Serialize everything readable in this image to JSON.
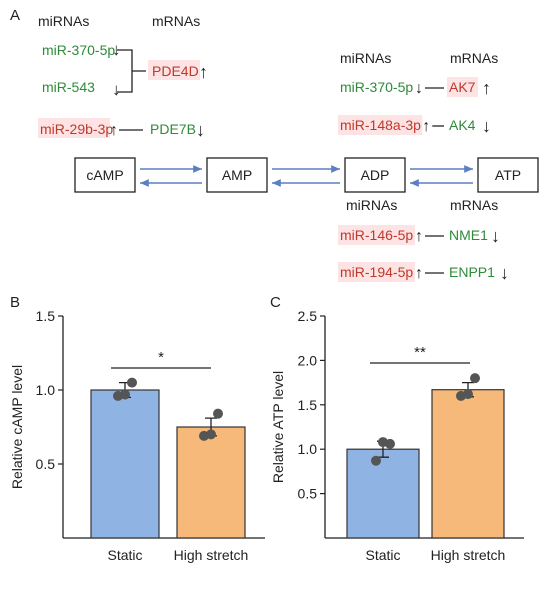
{
  "panel_a": {
    "label": "A",
    "top_left": {
      "header_mirnas": "miRNAs",
      "header_mrnas": "mRNAs",
      "mirnas": [
        {
          "name": "miR-370-5p",
          "arrow": "↓",
          "color": "#2e8b3a"
        },
        {
          "name": "miR-543",
          "arrow": "↓",
          "color": "#2e8b3a"
        },
        {
          "name": "miR-29b-3p",
          "arrow": "↑",
          "color": "#c0392b"
        }
      ],
      "mrnas": [
        {
          "name": "PDE4D",
          "arrow": "↑",
          "color": "#c0392b"
        },
        {
          "name": "PDE7B",
          "arrow": "↓",
          "color": "#2e8b3a"
        }
      ]
    },
    "top_right": {
      "header_mirnas": "miRNAs",
      "header_mrnas": "mRNAs",
      "pairs": [
        {
          "mirna": "miR-370-5p",
          "mirna_arrow": "↓",
          "mirna_color": "#2e8b3a",
          "mrna": "AK7",
          "mrna_arrow": "↑",
          "mrna_color": "#c0392b"
        },
        {
          "mirna": "miR-148a-3p",
          "mirna_arrow": "↑",
          "mirna_color": "#c0392b",
          "mrna": "AK4",
          "mrna_arrow": "↓",
          "mrna_color": "#2e8b3a"
        }
      ]
    },
    "pathway": [
      "cAMP",
      "AMP",
      "ADP",
      "ATP"
    ],
    "bottom_right": {
      "header_mirnas": "miRNAs",
      "header_mrnas": "mRNAs",
      "pairs": [
        {
          "mirna": "miR-146-5p",
          "mirna_arrow": "↑",
          "mirna_color": "#c0392b",
          "mrna": "NME1",
          "mrna_arrow": "↓",
          "mrna_color": "#2e8b3a"
        },
        {
          "mirna": "miR-194-5p",
          "mirna_arrow": "↑",
          "mirna_color": "#c0392b",
          "mrna": "ENPP1",
          "mrna_arrow": "↓",
          "mrna_color": "#2e8b3a"
        }
      ]
    },
    "arrow_color": "#5b7fc4",
    "red_highlight": "#fde3e3"
  },
  "chart_data": [
    {
      "panel": "B",
      "type": "bar",
      "categories": [
        "Static",
        "High stretch"
      ],
      "values": [
        1.0,
        0.75
      ],
      "errors": [
        0.05,
        0.06
      ],
      "points": [
        [
          0.96,
          0.97,
          1.05
        ],
        [
          0.69,
          0.7,
          0.84
        ]
      ],
      "colors": [
        "#8fb4e3",
        "#f6b97a"
      ],
      "ylabel": "Relative cAMP level",
      "ylim": [
        0.0,
        1.5
      ],
      "yticks": [
        0.5,
        1.0,
        1.5
      ],
      "significance": "*"
    },
    {
      "panel": "C",
      "type": "bar",
      "categories": [
        "Static",
        "High stretch"
      ],
      "values": [
        1.0,
        1.67
      ],
      "errors": [
        0.09,
        0.08
      ],
      "points": [
        [
          0.87,
          1.08,
          1.06
        ],
        [
          1.6,
          1.62,
          1.8
        ]
      ],
      "colors": [
        "#8fb4e3",
        "#f6b97a"
      ],
      "ylabel": "Relative ATP level",
      "ylim": [
        0.0,
        2.5
      ],
      "yticks": [
        0.5,
        1.0,
        1.5,
        2.0,
        2.5
      ],
      "significance": "**"
    }
  ]
}
